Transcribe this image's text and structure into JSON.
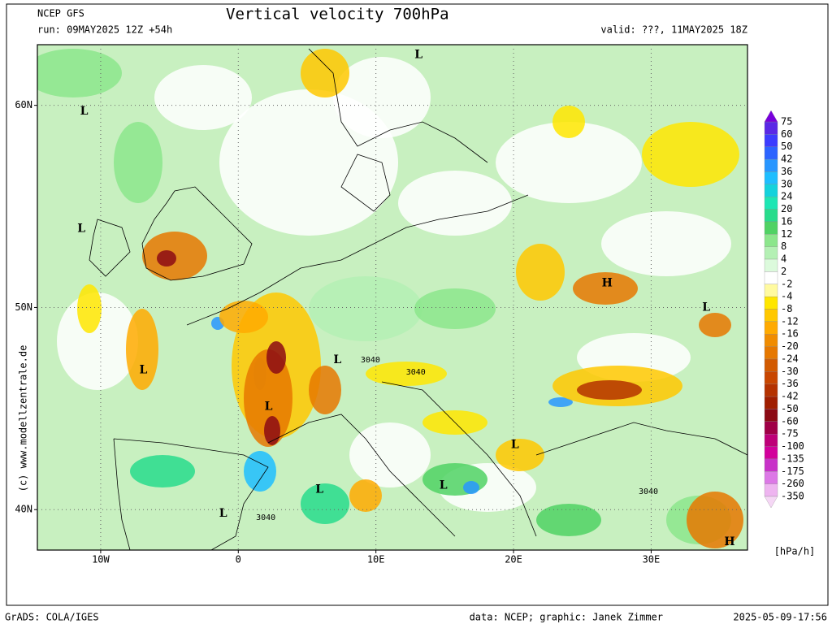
{
  "header": {
    "model": "NCEP GFS",
    "title": "Vertical velocity 700hPa",
    "run": "run: 09MAY2025 12Z +54h",
    "valid": "valid: ???, 11MAY2025 18Z"
  },
  "map": {
    "xlim": [
      -14.6,
      37.0
    ],
    "ylim": [
      38.0,
      63.0
    ],
    "xticks": [
      {
        "value": -10,
        "label": "10W"
      },
      0,
      {
        "value": 10,
        "label": "10E"
      },
      {
        "value": 20,
        "label": "20E"
      },
      {
        "value": 30,
        "label": "30E"
      }
    ],
    "yticks": [
      {
        "value": 40,
        "label": "40N"
      },
      {
        "value": 50,
        "label": "50N"
      },
      {
        "value": 60,
        "label": "60N"
      }
    ],
    "pressure_centers": [
      {
        "label": "L",
        "lon": -11.2,
        "lat": 59.7
      },
      {
        "label": "L",
        "lon": 13.1,
        "lat": 62.5
      },
      {
        "label": "L",
        "lon": -11.4,
        "lat": 53.9
      },
      {
        "label": "H",
        "lon": 26.8,
        "lat": 51.2
      },
      {
        "label": "L",
        "lon": 34.0,
        "lat": 50.0
      },
      {
        "label": "L",
        "lon": -6.9,
        "lat": 46.9
      },
      {
        "label": "L",
        "lon": 7.2,
        "lat": 47.4
      },
      {
        "label": "L",
        "lon": 2.2,
        "lat": 45.1
      },
      {
        "label": "L",
        "lon": 20.1,
        "lat": 43.2
      },
      {
        "label": "L",
        "lon": 14.9,
        "lat": 41.2
      },
      {
        "label": "L",
        "lon": 5.9,
        "lat": 41.0
      },
      {
        "label": "L",
        "lon": -1.1,
        "lat": 39.8
      },
      {
        "label": "H",
        "lon": 35.7,
        "lat": 38.4
      }
    ],
    "contour_labels": [
      {
        "label": "3040",
        "lon": 9.6,
        "lat": 47.4
      },
      {
        "label": "3040",
        "lon": 12.9,
        "lat": 46.8
      },
      {
        "label": "3040",
        "lon": 29.8,
        "lat": 40.9
      },
      {
        "label": "3040",
        "lon": 2.0,
        "lat": 39.6
      }
    ]
  },
  "colorbar": {
    "unit": "[hPa/h]",
    "levels": [
      75,
      60,
      50,
      42,
      36,
      30,
      24,
      20,
      16,
      12,
      8,
      4,
      2,
      -2,
      -4,
      -8,
      -12,
      -16,
      -20,
      -24,
      -30,
      -36,
      -42,
      -50,
      -60,
      -75,
      -100,
      -135,
      -175,
      -260,
      -350
    ],
    "colors": [
      "#7800dc",
      "#5a28e6",
      "#3c3cff",
      "#2c64ff",
      "#2896ff",
      "#1ebeff",
      "#14d2dc",
      "#1ee6b4",
      "#28dc8c",
      "#50d264",
      "#8ce68c",
      "#b4f0b4",
      "#dcfadc",
      "#ffffff",
      "#fffaa0",
      "#ffe600",
      "#ffc800",
      "#ffaa00",
      "#f08c00",
      "#e67800",
      "#d25a00",
      "#c84600",
      "#b43200",
      "#a01e00",
      "#8c0a14",
      "#a00046",
      "#be0078",
      "#d2009b",
      "#c832c8",
      "#dc78e6",
      "#eeb4f0",
      "#f5d7f5"
    ]
  },
  "credit": "(c) www.modellzentrale.de",
  "footer": {
    "left": "GrADS: COLA/IGES",
    "center": "data: NCEP; graphic: Janek Zimmer",
    "right": "2025-05-09-17:56"
  }
}
